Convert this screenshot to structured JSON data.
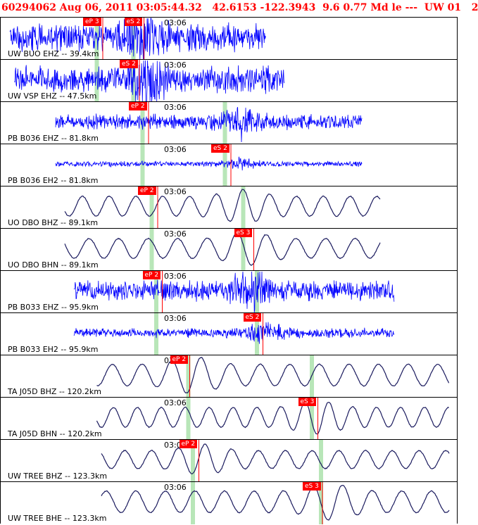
{
  "header": {
    "text": "60294062 Aug 06, 2011 03:05:44.32   42.6153 -122.3943  9.6 0.77 Md le ---  UW 01   2"
  },
  "traces": [
    {
      "station": "UW BUO EHZ -- 39.4km",
      "time_label": "03:06",
      "style": "noise",
      "amp": 1.0,
      "start": 0.02,
      "end": 0.58,
      "picks": [
        {
          "label": "eP 3",
          "pos": 0.18,
          "conf": 0.2
        },
        {
          "label": "eS 2",
          "pos": 0.27,
          "conf": 0.05
        }
      ],
      "green": [
        0.21,
        0.29
      ],
      "quake": 0.31
    },
    {
      "station": "UW VSP EHZ -- 47.5km",
      "time_label": "03:06",
      "style": "noise",
      "amp": 1.0,
      "start": 0.03,
      "end": 0.62,
      "picks": [
        {
          "label": "eS 2",
          "pos": 0.26,
          "conf": 0.05
        }
      ],
      "green": [
        0.21,
        0.29
      ],
      "quake": 0.32
    },
    {
      "station": "PB B036 EHZ -- 81.8km",
      "time_label": "03:06",
      "style": "noise",
      "amp": 0.55,
      "start": 0.12,
      "end": 0.79,
      "picks": [
        {
          "label": "eP 2",
          "pos": 0.28,
          "conf": 0.05
        }
      ],
      "green": [
        0.31,
        0.49
      ],
      "quake": 0.52
    },
    {
      "station": "PB B036 EH2 -- 81.8km",
      "time_label": "03:06",
      "style": "noise",
      "amp": 0.2,
      "start": 0.12,
      "end": 0.79,
      "picks": [
        {
          "label": "eS 2",
          "pos": 0.46,
          "conf": 0.05
        }
      ],
      "green": [
        0.31,
        0.49
      ],
      "quake": 0.52
    },
    {
      "station": "UO DBO BHZ -- 89.1km",
      "time_label": "03:06",
      "style": "wave",
      "amp": 0.55,
      "start": 0.14,
      "end": 0.83,
      "picks": [
        {
          "label": "eP 2",
          "pos": 0.3,
          "conf": 0.03
        }
      ],
      "green": [
        0.33,
        0.53
      ],
      "quake": 0.53
    },
    {
      "station": "UO DBO BHN -- 89.1km",
      "time_label": "03:06",
      "style": "wave",
      "amp": 0.55,
      "start": 0.14,
      "end": 0.83,
      "picks": [
        {
          "label": "eS 3",
          "pos": 0.51,
          "conf": 0.04
        }
      ],
      "green": [
        0.33,
        0.53
      ],
      "quake": 0.54
    },
    {
      "station": "PB B033 EHZ -- 95.9km",
      "time_label": "03:06",
      "style": "noise",
      "amp": 0.75,
      "start": 0.16,
      "end": 0.86,
      "picks": [
        {
          "label": "eP 2",
          "pos": 0.31,
          "conf": 0.05
        }
      ],
      "green": [
        0.34,
        0.56
      ],
      "quake": 0.55
    },
    {
      "station": "PB B033 EH2 -- 95.9km",
      "time_label": "03:06",
      "style": "noise",
      "amp": 0.35,
      "start": 0.16,
      "end": 0.86,
      "picks": [
        {
          "label": "eS 2",
          "pos": 0.53,
          "conf": 0.05
        }
      ],
      "green": [
        0.34,
        0.56
      ],
      "quake": 0.58
    },
    {
      "station": "TA J05D BHZ -- 120.2km",
      "time_label": "03:0",
      "style": "wave",
      "amp": 0.6,
      "start": 0.21,
      "end": 0.98,
      "picks": [
        {
          "label": "eP 2",
          "pos": 0.37,
          "conf": 0.05
        }
      ],
      "green": [
        0.41,
        0.68
      ],
      "quake": 0.42
    },
    {
      "station": "TA J05D BHN -- 120.2km",
      "time_label": "03:06",
      "style": "wave",
      "amp": 0.55,
      "start": 0.21,
      "end": 0.98,
      "picks": [
        {
          "label": "eS 3",
          "pos": 0.65,
          "conf": 0.05
        }
      ],
      "green": [
        0.41,
        0.68
      ],
      "quake": 0.69
    },
    {
      "station": "UW TREE BHZ -- 123.3km",
      "time_label": "03:0",
      "style": "wave",
      "amp": 0.5,
      "start": 0.22,
      "end": 0.98,
      "picks": [
        {
          "label": "eP 2",
          "pos": 0.39,
          "conf": 0.05
        }
      ],
      "green": [
        0.42,
        0.7
      ],
      "quake": 0.44
    },
    {
      "station": "UW TREE BHE -- 123.3km",
      "time_label": "03:06",
      "style": "wave",
      "amp": 0.6,
      "start": 0.22,
      "end": 0.98,
      "picks": [
        {
          "label": "eS 3",
          "pos": 0.66,
          "conf": 0.05
        }
      ],
      "green": [
        0.42,
        0.7
      ],
      "quake": 0.72
    }
  ],
  "colors": {
    "header_text": "#ff0000",
    "trace_noise": "#0000ff",
    "trace_wave": "#1a1a5e",
    "pick_fill": "#ff0000",
    "pick_line": "#ff0000",
    "green_marker": "#b8e6b8"
  }
}
